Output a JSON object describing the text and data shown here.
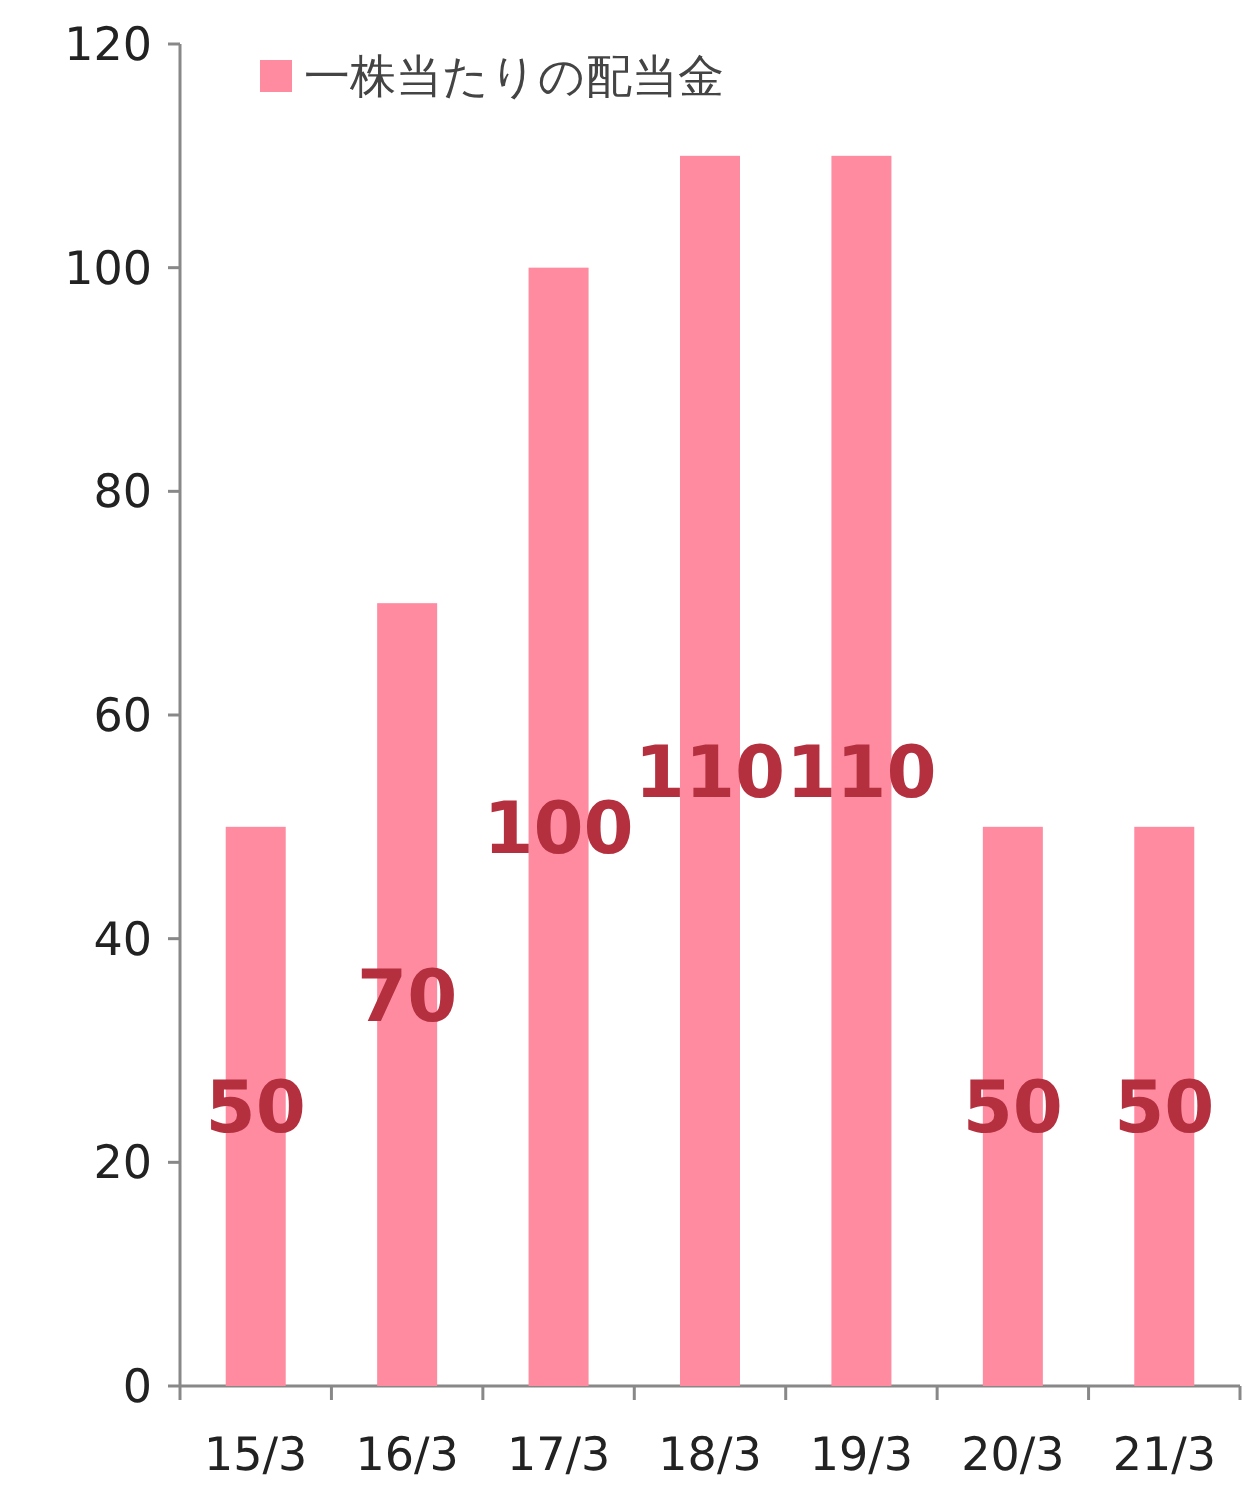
{
  "chart_data": {
    "type": "bar",
    "categories": [
      "15/3",
      "16/3",
      "17/3",
      "18/3",
      "19/3",
      "20/3",
      "21/3"
    ],
    "series": [
      {
        "name": "一株当たりの配当金",
        "color": "#ff8ba0",
        "values": [
          50,
          70,
          100,
          110,
          110,
          50,
          50
        ]
      }
    ],
    "ylim": [
      0,
      120
    ],
    "yticks": [
      0,
      20,
      40,
      60,
      80,
      100,
      120
    ],
    "grid": false,
    "legend": "top",
    "data_labels": true
  }
}
